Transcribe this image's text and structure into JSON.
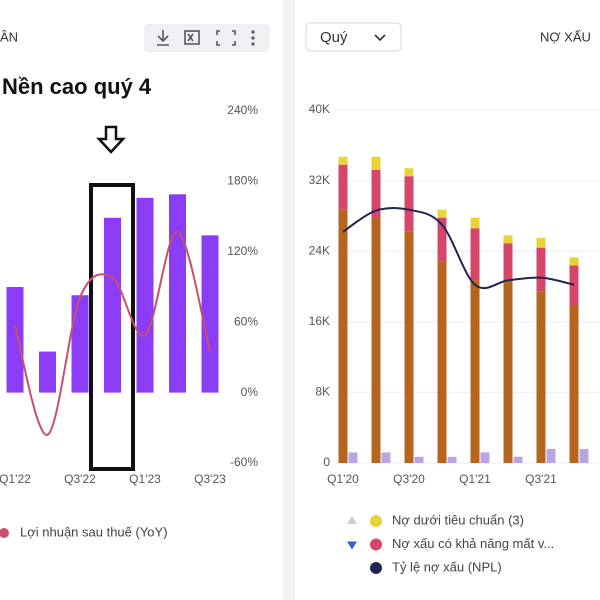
{
  "chart_data": [
    {
      "type": "bar",
      "title": "ÂN",
      "annotation": "Nền cao quý 4",
      "categories": [
        "Q1'22",
        null,
        "Q3'22",
        null,
        "Q1'23",
        null,
        "Q3'23"
      ],
      "ylim": [
        -60,
        240
      ],
      "yticks": [
        {
          "value": 240,
          "label": "240%"
        },
        {
          "value": 180,
          "label": "180%"
        },
        {
          "value": 120,
          "label": "120%"
        },
        {
          "value": 60,
          "label": "60%"
        },
        {
          "value": 0,
          "label": "0%"
        },
        {
          "value": -60,
          "label": "-60%"
        }
      ],
      "series": [
        {
          "type": "bar",
          "color": "#8b3cf7",
          "values": [
            90,
            35,
            83,
            149,
            166,
            169,
            134
          ]
        },
        {
          "type": "line",
          "name": "Lợi nhuận sau thuế (YoY)",
          "color": "#c94f6d",
          "values": [
            57,
            -36,
            81,
            98,
            49,
            137,
            35
          ]
        }
      ]
    },
    {
      "type": "bar",
      "title": "NỢ XẤU",
      "period_selector": "Quý",
      "categories": [
        "Q1'20",
        null,
        "Q3'20",
        null,
        "Q1'21",
        null,
        "Q3'21",
        null
      ],
      "ylim": [
        0,
        40000
      ],
      "grid": true,
      "yticks": [
        {
          "value": 40000,
          "label": "40K"
        },
        {
          "value": 32000,
          "label": "32K"
        },
        {
          "value": 24000,
          "label": "24K"
        },
        {
          "value": 16000,
          "label": "16K"
        },
        {
          "value": 8000,
          "label": "8K"
        },
        0
      ],
      "series": [
        {
          "type": "bar",
          "stack": "a",
          "name": "Nợ dưới tiêu chuẩn (3)",
          "color": "#e8d43a",
          "values": [
            900,
            1500,
            900,
            900,
            1200,
            900,
            1100,
            900
          ]
        },
        {
          "type": "bar",
          "stack": "a",
          "name": "Nợ xấu có khả năng mất v...",
          "color": "#d6456a",
          "values": [
            5100,
            5400,
            6300,
            5000,
            5900,
            4400,
            5000,
            4500
          ]
        },
        {
          "type": "bar",
          "stack": "a",
          "color": "#b5651d",
          "values": [
            28700,
            27800,
            26200,
            22800,
            20700,
            20500,
            19400,
            17900
          ]
        },
        {
          "type": "bar",
          "stack": "b",
          "color": "#b9a4e6",
          "values": [
            1200,
            1200,
            700,
            700,
            1200,
            700,
            1600,
            1600
          ]
        },
        {
          "type": "line",
          "name": "Tỷ lệ nợ xấu (NPL)",
          "color": "#1f2450",
          "values": [
            26200,
            28600,
            28700,
            27000,
            20200,
            20700,
            21000,
            20200
          ]
        }
      ]
    }
  ]
}
